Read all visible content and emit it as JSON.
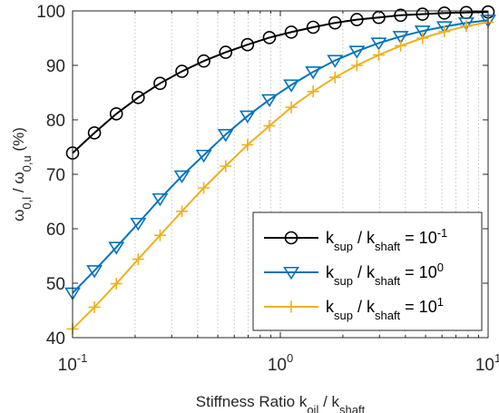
{
  "chart_data": {
    "type": "line",
    "xscale": "log",
    "xlim": [
      0.1,
      10
    ],
    "ylim": [
      40,
      100
    ],
    "grid": {
      "x": "dotted-vertical",
      "y": "off"
    },
    "legend_position": "bottom-right",
    "xlabel": {
      "main": "Stiffness Ratio k",
      "sub1": "oil",
      "sep": " / k",
      "sub2": "shaft"
    },
    "ylabel": {
      "w1": "ω",
      "sub1": "0,l",
      "sep": " / ",
      "w2": "ω",
      "sub2": "0,u",
      "unit": " (%)"
    },
    "x_ticks": [
      {
        "value": 0.1,
        "base": "10",
        "exp": "-1"
      },
      {
        "value": 1,
        "base": "10",
        "exp": "0"
      },
      {
        "value": 10,
        "base": "10",
        "exp": "1"
      }
    ],
    "y_ticks": [
      "40",
      "50",
      "60",
      "70",
      "80",
      "90",
      "100"
    ],
    "x": [
      0.1,
      0.1274,
      0.1624,
      0.2069,
      0.2637,
      0.336,
      0.4281,
      0.5456,
      0.6952,
      0.8859,
      1.1288,
      1.4384,
      1.833,
      2.3357,
      2.9764,
      3.7927,
      4.8329,
      6.1585,
      7.8476,
      10.0
    ],
    "series": [
      {
        "legend": {
          "k": "k",
          "sub1": "sup",
          "sep": " / k",
          "sub2": "shaft",
          "eq": " = 10",
          "exp": "-1"
        },
        "color": "#000000",
        "marker": "circle",
        "values": [
          73.9,
          77.6,
          81.1,
          84.1,
          86.7,
          88.9,
          90.8,
          92.4,
          93.8,
          95.1,
          96.1,
          97.0,
          97.8,
          98.4,
          98.8,
          99.2,
          99.4,
          99.6,
          99.7,
          99.8
        ]
      },
      {
        "legend": {
          "k": "k",
          "sub1": "sup",
          "sep": " / k",
          "sub2": "shaft",
          "eq": " = 10",
          "exp": "0"
        },
        "color": "#0072BD",
        "marker": "triangle-down",
        "values": [
          48.2,
          52.3,
          56.6,
          61.0,
          65.5,
          69.7,
          73.5,
          77.3,
          80.7,
          83.7,
          86.4,
          88.8,
          90.9,
          92.6,
          94.1,
          95.3,
          96.3,
          97.1,
          97.8,
          98.3
        ]
      },
      {
        "legend": {
          "k": "k",
          "sub1": "sup",
          "sep": " / k",
          "sub2": "shaft",
          "eq": " = 10",
          "exp": "1"
        },
        "color": "#EDB120",
        "marker": "plus",
        "values": [
          41.6,
          45.6,
          49.9,
          54.4,
          58.8,
          63.2,
          67.5,
          71.5,
          75.4,
          78.9,
          82.3,
          85.2,
          87.8,
          90.0,
          91.9,
          93.6,
          95.0,
          96.2,
          97.2,
          97.9
        ]
      }
    ]
  }
}
